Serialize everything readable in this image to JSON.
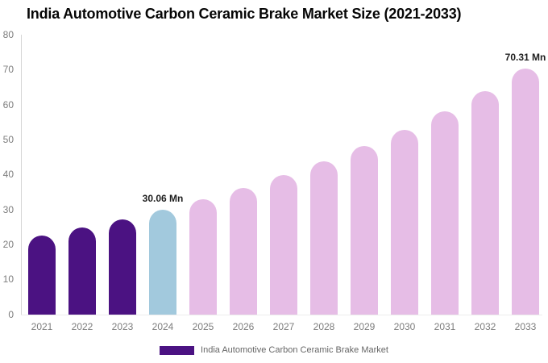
{
  "chart_data": {
    "type": "bar",
    "title": "India Automotive Carbon Ceramic Brake Market Size (2021-2033)",
    "categories": [
      "2021",
      "2022",
      "2023",
      "2024",
      "2025",
      "2026",
      "2027",
      "2028",
      "2029",
      "2030",
      "2031",
      "2032",
      "2033"
    ],
    "values": [
      22.64,
      24.89,
      27.35,
      30.06,
      33.04,
      36.31,
      39.9,
      43.85,
      48.19,
      52.96,
      58.2,
      63.96,
      70.31
    ],
    "unit": "Mn",
    "bar_colors": [
      "#4B1282",
      "#4B1282",
      "#4B1282",
      "#A2C9DD",
      "#E6BDE6",
      "#E6BDE6",
      "#E6BDE6",
      "#E6BDE6",
      "#E6BDE6",
      "#E6BDE6",
      "#E6BDE6",
      "#E6BDE6",
      "#E6BDE6"
    ],
    "y_ticks": [
      0,
      10,
      20,
      30,
      40,
      50,
      60,
      70,
      80
    ],
    "ylim": [
      0,
      80
    ],
    "xlabel": "",
    "ylabel": "",
    "grid": false,
    "annotations": [
      {
        "index": 3,
        "text": "30.06 Mn"
      },
      {
        "index": 12,
        "text": "70.31 Mn"
      }
    ],
    "legend": {
      "position": "bottom",
      "swatch_color": "#4B1282",
      "label": "India Automotive Carbon Ceramic Brake Market"
    }
  },
  "colors": {
    "dark_purple": "#4B1282",
    "light_blue": "#A2C9DD",
    "light_pink": "#E6BDE6",
    "axis_line": "#D6D6D6",
    "tick_text": "#7D7D7D",
    "legend_text": "#666666",
    "annotation_text": "#1E1E1E",
    "title_text": "#060606",
    "background": "#FFFFFF"
  }
}
